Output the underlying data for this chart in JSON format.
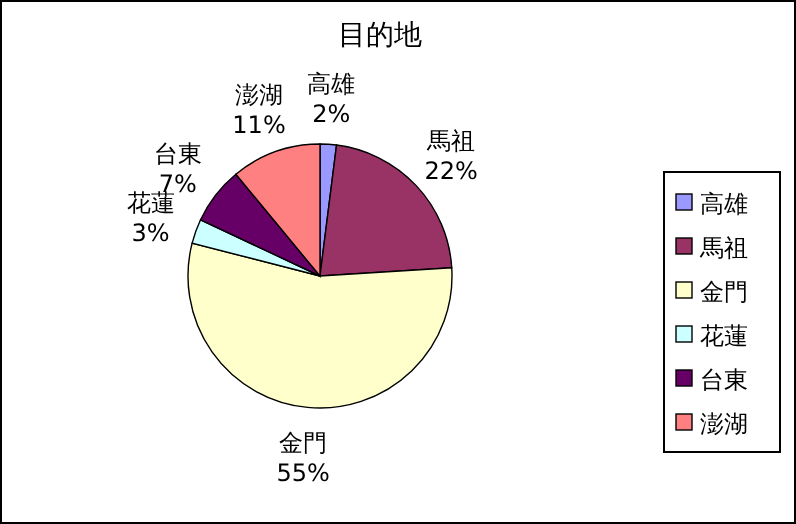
{
  "chart_data": {
    "type": "pie",
    "title": "目的地",
    "categories": [
      "高雄",
      "馬祖",
      "金門",
      "花蓮",
      "台東",
      "澎湖"
    ],
    "values": [
      2,
      22,
      55,
      3,
      7,
      11
    ],
    "value_labels": [
      "2%",
      "22%",
      "55%",
      "3%",
      "7%",
      "11%"
    ],
    "colors": [
      "#9999ff",
      "#993366",
      "#ffffcc",
      "#ccffff",
      "#660066",
      "#ff8080"
    ],
    "legend": "right"
  }
}
